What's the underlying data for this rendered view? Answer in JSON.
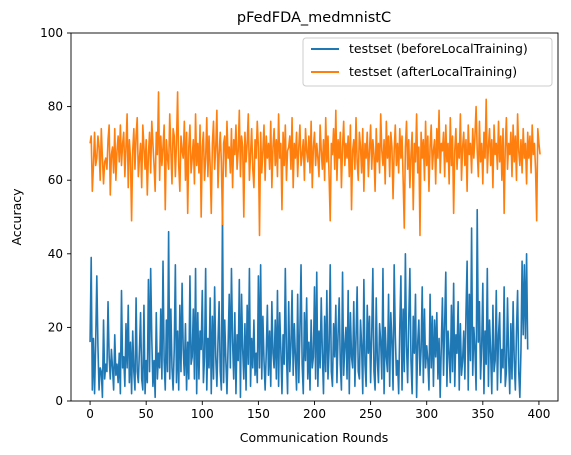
{
  "chart_data": {
    "type": "line",
    "title": "pFedFDA_medmnistC",
    "xlabel": "Communication Rounds",
    "ylabel": "Accuracy",
    "xlim": [
      -17,
      417
    ],
    "ylim": [
      0,
      100
    ],
    "xticks": [
      0,
      50,
      100,
      150,
      200,
      250,
      300,
      350,
      400
    ],
    "yticks": [
      0,
      20,
      40,
      60,
      80,
      100
    ],
    "grid": false,
    "legend_position": "top-right",
    "series": [
      {
        "name": "testset (beforeLocalTraining)",
        "color": "#1f77b4",
        "x_step": 1,
        "values": [
          16,
          39,
          3,
          17,
          2,
          16,
          34,
          15,
          3,
          9,
          8,
          1,
          22,
          6,
          10,
          8,
          27,
          12,
          6,
          14,
          9,
          3,
          18,
          7,
          10,
          5,
          13,
          2,
          30,
          9,
          12,
          4,
          21,
          9,
          26,
          5,
          16,
          2,
          19,
          8,
          3,
          28,
          8,
          5,
          14,
          24,
          6,
          3,
          26,
          2,
          11,
          5,
          33,
          8,
          36,
          17,
          4,
          11,
          1,
          24,
          6,
          13,
          9,
          25,
          6,
          38,
          11,
          3,
          22,
          8,
          46,
          6,
          25,
          9,
          3,
          14,
          37,
          5,
          19,
          3,
          26,
          8,
          32,
          14,
          7,
          21,
          3,
          16,
          6,
          34,
          10,
          12,
          25,
          6,
          36,
          2,
          24,
          6,
          19,
          14,
          30,
          5,
          12,
          36,
          3,
          17,
          9,
          28,
          2,
          23,
          6,
          31,
          12,
          4,
          16,
          27,
          8,
          3,
          52,
          5,
          22,
          11,
          2,
          15,
          29,
          9,
          36,
          16,
          6,
          24,
          2,
          18,
          11,
          33,
          1,
          29,
          14,
          6,
          21,
          3,
          26,
          10,
          36,
          4,
          17,
          9,
          22,
          7,
          13,
          5,
          34,
          9,
          37,
          6,
          23,
          11,
          3,
          13,
          26,
          7,
          19,
          4,
          27,
          13,
          9,
          22,
          6,
          30,
          4,
          24,
          14,
          2,
          18,
          10,
          36,
          13,
          2,
          27,
          8,
          15,
          30,
          7,
          21,
          12,
          3,
          29,
          5,
          19,
          37,
          10,
          2,
          24,
          11,
          28,
          6,
          16,
          3,
          22,
          9,
          12,
          31,
          6,
          35,
          4,
          19,
          9,
          28,
          13,
          2,
          23,
          8,
          30,
          6,
          14,
          37,
          8,
          4,
          21,
          12,
          26,
          5,
          18,
          28,
          10,
          3,
          35,
          7,
          15,
          20,
          6,
          30,
          2,
          24,
          12,
          9,
          27,
          4,
          17,
          31,
          8,
          6,
          22,
          15,
          2,
          33,
          10,
          4,
          26,
          13,
          23,
          5,
          18,
          36,
          8,
          3,
          28,
          11,
          5,
          21,
          16,
          6,
          36,
          2,
          20,
          12,
          8,
          29,
          4,
          24,
          16,
          3,
          37,
          18,
          7,
          11,
          2,
          20,
          34,
          3,
          25,
          8,
          40,
          15,
          5,
          22,
          36,
          11,
          2,
          23,
          13,
          29,
          1,
          16,
          22,
          7,
          14,
          31,
          5,
          25,
          9,
          15,
          11,
          3,
          29,
          9,
          23,
          4,
          22,
          12,
          24,
          6,
          17,
          1,
          15,
          28,
          7,
          21,
          35,
          4,
          19,
          13,
          5,
          26,
          8,
          32,
          4,
          18,
          13,
          27,
          3,
          21,
          7,
          11,
          19,
          6,
          24,
          38,
          3,
          29,
          11,
          47,
          7,
          20,
          14,
          3,
          52,
          16,
          27,
          6,
          15,
          32,
          2,
          19,
          10,
          36,
          4,
          22,
          13,
          2,
          26,
          8,
          11,
          30,
          3,
          18,
          24,
          5,
          14,
          9,
          31,
          4,
          8,
          28,
          12,
          2,
          21,
          6,
          27,
          11,
          3,
          19,
          30,
          8,
          1,
          14,
          38,
          18,
          37,
          17,
          40,
          14
        ]
      },
      {
        "name": "testset (afterLocalTraining)",
        "color": "#ff7f0e",
        "x_step": 1,
        "values": [
          70,
          72,
          57,
          64,
          73,
          64,
          66,
          72,
          69,
          60,
          74,
          66,
          59,
          65,
          66,
          63,
          71,
          75,
          56,
          67,
          69,
          62,
          74,
          60,
          68,
          72,
          65,
          75,
          64,
          70,
          73,
          61,
          69,
          78,
          58,
          71,
          66,
          49,
          68,
          74,
          63,
          72,
          77,
          61,
          66,
          70,
          58,
          75,
          69,
          63,
          71,
          56,
          67,
          73,
          62,
          76,
          70,
          64,
          57,
          73,
          67,
          84,
          60,
          72,
          64,
          69,
          75,
          52,
          71,
          66,
          63,
          78,
          68,
          59,
          74,
          72,
          61,
          70,
          84,
          64,
          57,
          72,
          68,
          66,
          76,
          60,
          73,
          51,
          69,
          75,
          62,
          66,
          71,
          59,
          78,
          64,
          70,
          62,
          75,
          50,
          69,
          73,
          60,
          66,
          77,
          61,
          72,
          64,
          51,
          70,
          76,
          63,
          69,
          79,
          58,
          67,
          73,
          65,
          48,
          70,
          72,
          61,
          76,
          66,
          69,
          62,
          74,
          58,
          71,
          67,
          75,
          63,
          68,
          79,
          61,
          72,
          69,
          50,
          73,
          65,
          70,
          78,
          60,
          67,
          74,
          63,
          58,
          71,
          66,
          76,
          69,
          45,
          73,
          62,
          68,
          75,
          60,
          72,
          66,
          70,
          63,
          76,
          58,
          69,
          74,
          64,
          71,
          61,
          78,
          66,
          70,
          52,
          73,
          64,
          75,
          60,
          68,
          69,
          72,
          63,
          77,
          58,
          70,
          66,
          73,
          61,
          69,
          75,
          64,
          67,
          71,
          60,
          74,
          68,
          65,
          72,
          62,
          76,
          58,
          69,
          73,
          64,
          70,
          66,
          61,
          75,
          68,
          63,
          71,
          60,
          77,
          65,
          72,
          61,
          49,
          70,
          67,
          74,
          63,
          79,
          60,
          71,
          66,
          73,
          58,
          69,
          76,
          64,
          70,
          66,
          72,
          61,
          75,
          52,
          68,
          71,
          63,
          77,
          65,
          60,
          73,
          69,
          62,
          74,
          57,
          70,
          66,
          73,
          61,
          68,
          75,
          63,
          71,
          67,
          57,
          74,
          65,
          70,
          62,
          78,
          68,
          64,
          71,
          59,
          76,
          66,
          72,
          61,
          73,
          69,
          55,
          68,
          75,
          64,
          70,
          62,
          74,
          66,
          72,
          60,
          47,
          69,
          76,
          63,
          71,
          58,
          67,
          73,
          52,
          70,
          65,
          78,
          62,
          69,
          45,
          73,
          66,
          71,
          60,
          76,
          64,
          72,
          57,
          69,
          75,
          63,
          68,
          71,
          59,
          74,
          66,
          79,
          62,
          70,
          68,
          73,
          61,
          75,
          65,
          70,
          59,
          77,
          64,
          72,
          51,
          68,
          74,
          63,
          70,
          66,
          78,
          60,
          69,
          73,
          64,
          71,
          57,
          75,
          67,
          70,
          62,
          74,
          66,
          72,
          80,
          68,
          61,
          76,
          65,
          70,
          59,
          73,
          66,
          82,
          62,
          69,
          74,
          64,
          71,
          58,
          75,
          67,
          70,
          63,
          76,
          65,
          72,
          60,
          74,
          51,
          69,
          77,
          63,
          70,
          67,
          73,
          61,
          75,
          65,
          72,
          60,
          78,
          68,
          64,
          71,
          62,
          74,
          66,
          70,
          59,
          73,
          66,
          72,
          62,
          75,
          67,
          70,
          63,
          49,
          74,
          70,
          67
        ]
      }
    ]
  }
}
